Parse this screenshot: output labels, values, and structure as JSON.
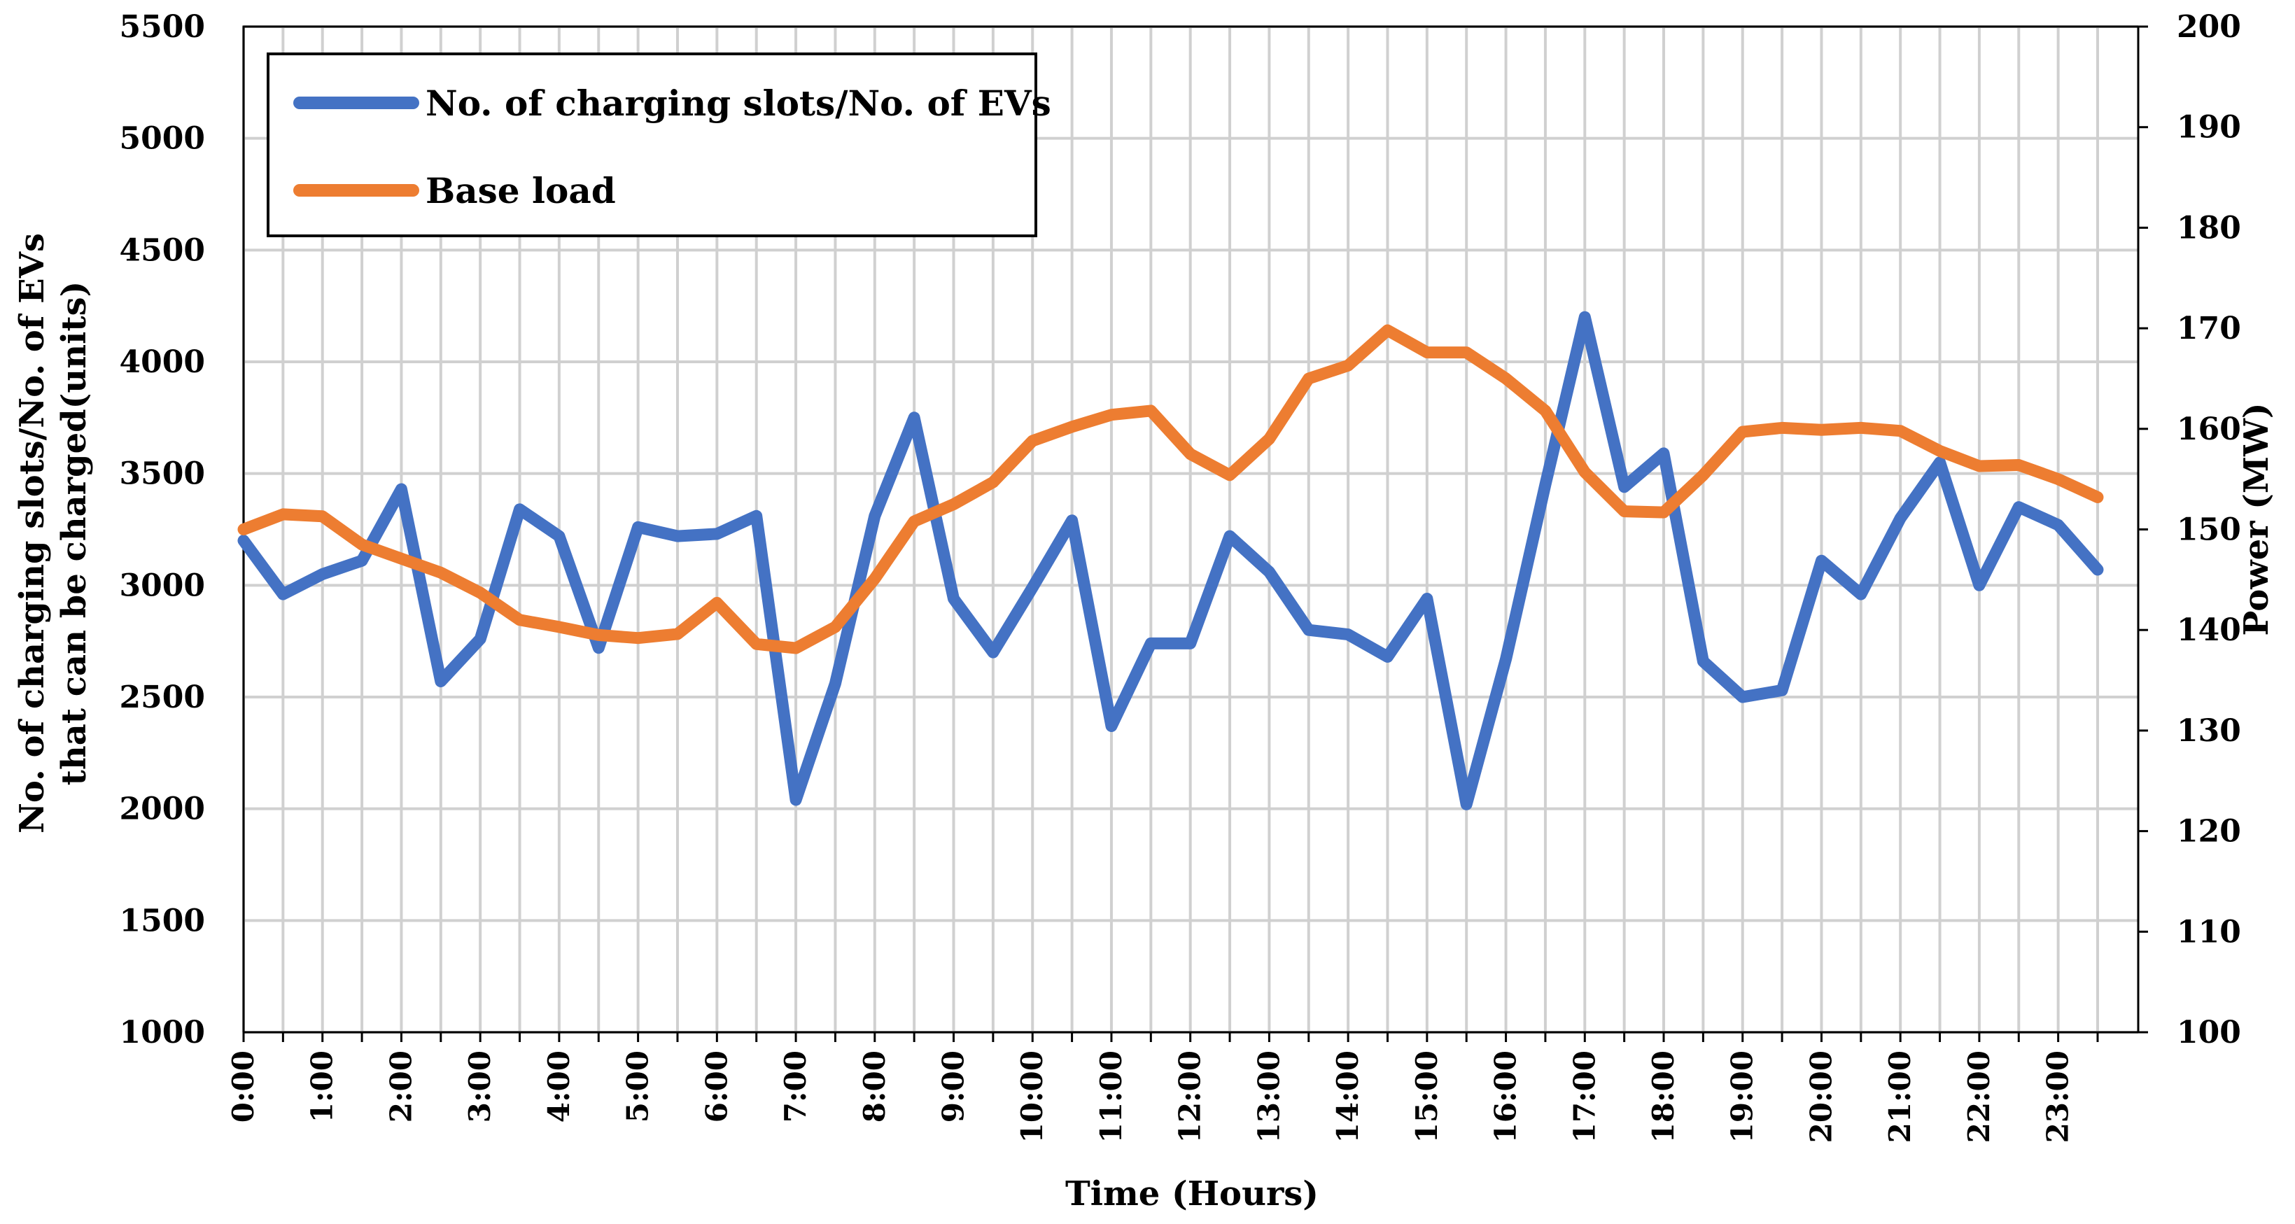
{
  "chart_data": {
    "type": "line",
    "title": "",
    "xlabel": "Time (Hours)",
    "ylabel_left": [
      "No. of charging slots/No. of EVs",
      "that can be charged(units)"
    ],
    "ylabel_right": "Power (MW)",
    "ylim_left": [
      1000,
      5500
    ],
    "ylim_right": [
      100,
      200
    ],
    "yticks_left": [
      "1000",
      "1500",
      "2000",
      "2500",
      "3000",
      "3500",
      "4000",
      "4500",
      "5000",
      "5500"
    ],
    "yticks_right": [
      "100",
      "110",
      "120",
      "130",
      "140",
      "150",
      "160",
      "170",
      "180",
      "190",
      "200"
    ],
    "x_tick_labels": [
      "0:00",
      "1:00",
      "2:00",
      "3:00",
      "4:00",
      "5:00",
      "6:00",
      "7:00",
      "8:00",
      "9:00",
      "10:00",
      "11:00",
      "12:00",
      "13:00",
      "14:00",
      "15:00",
      "16:00",
      "17:00",
      "18:00",
      "19:00",
      "20:00",
      "21:00",
      "22:00",
      "23:00"
    ],
    "x_hours": [
      0,
      0.5,
      1,
      1.5,
      2,
      2.5,
      3,
      3.5,
      4,
      4.5,
      5,
      5.5,
      6,
      6.5,
      7,
      7.5,
      8,
      8.5,
      9,
      9.5,
      10,
      10.5,
      11,
      11.5,
      12,
      12.5,
      13,
      13.5,
      14,
      14.5,
      15,
      15.5,
      16,
      16.5,
      17,
      17.5,
      18,
      18.5,
      19,
      19.5,
      20,
      20.5,
      21,
      21.5,
      22,
      22.5,
      23,
      23.5
    ],
    "x_max": 23.5,
    "grid": true,
    "legend_position": "top-left",
    "series": [
      {
        "name": "No. of charging slots/No. of EVs",
        "axis": "left",
        "color": "#4472C4",
        "values": [
          3200,
          2960,
          3050,
          3110,
          3430,
          2570,
          2760,
          3340,
          3220,
          2720,
          3260,
          3220,
          3230,
          3310,
          2040,
          2560,
          3310,
          3750,
          2940,
          2700,
          2990,
          3290,
          2370,
          2740,
          2740,
          3220,
          3060,
          2800,
          2780,
          2680,
          2940,
          2020,
          2670,
          3450,
          4200,
          3440,
          3590,
          2660,
          2500,
          2530,
          3110,
          2960,
          3300,
          3550,
          3000,
          3350,
          3270,
          3070
        ]
      },
      {
        "name": "Base load",
        "axis": "right",
        "color": "#ED7D31",
        "values": [
          150,
          151.5,
          151.3,
          148.5,
          147.1,
          145.7,
          143.7,
          141,
          140.3,
          139.5,
          139.2,
          139.6,
          142.7,
          138.6,
          138.2,
          140.3,
          145.1,
          150.8,
          152.5,
          154.7,
          158.8,
          160.2,
          161.4,
          161.8,
          157.5,
          155.4,
          159,
          165,
          166.3,
          169.8,
          167.6,
          167.6,
          165,
          161.8,
          155.7,
          151.8,
          151.7,
          155.4,
          159.7,
          160.1,
          159.9,
          160.1,
          159.8,
          157.8,
          156.3,
          156.4,
          155,
          153.2
        ]
      }
    ]
  }
}
